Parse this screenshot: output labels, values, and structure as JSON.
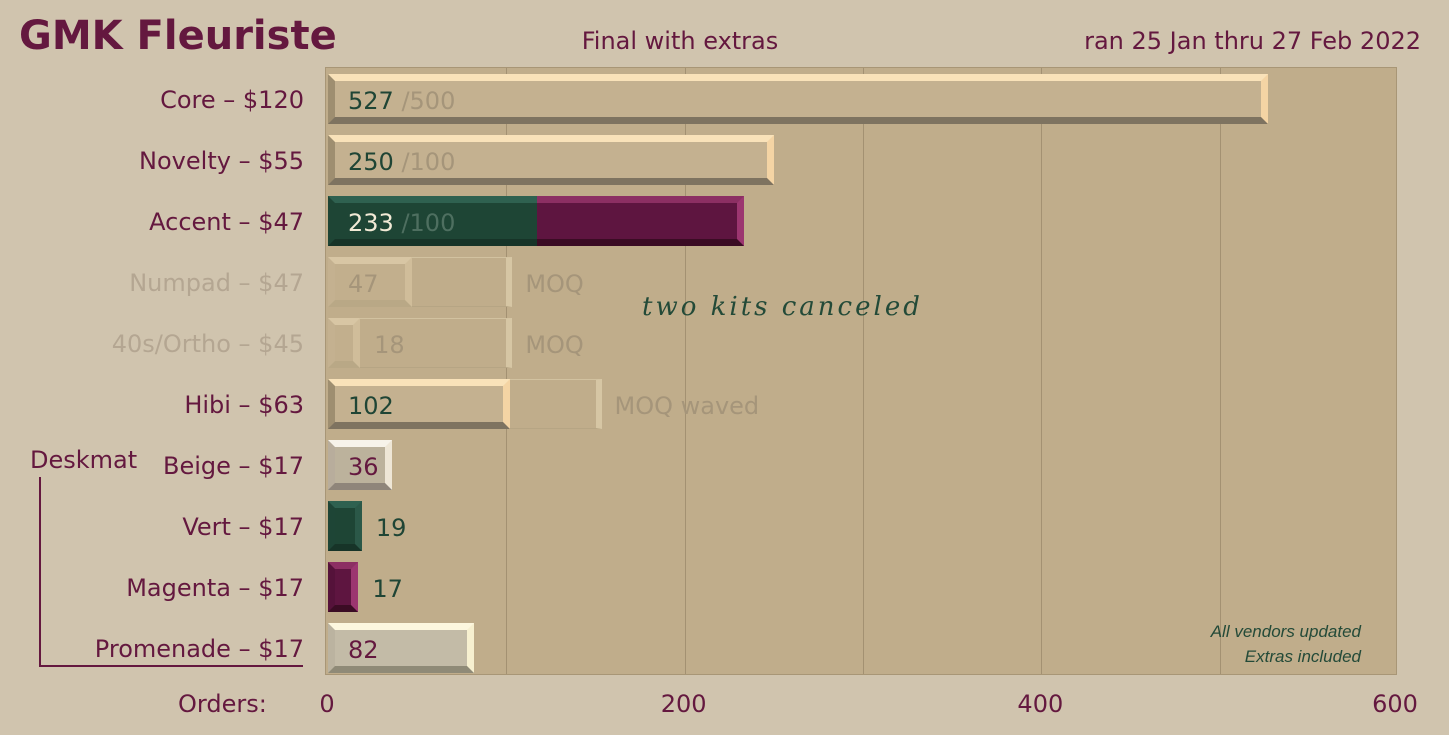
{
  "header": {
    "title": "GMK Fleuriste",
    "subtitle": "Final with extras",
    "date_range": "ran 25 Jan thru 27 Feb 2022"
  },
  "chart_data": {
    "type": "bar",
    "orientation": "horizontal",
    "xlabel": "Orders:",
    "xlim": [
      0,
      600
    ],
    "xticks": [
      "0",
      "200",
      "400",
      "600"
    ],
    "grid": "vertical",
    "categories": [
      "Core – $120",
      "Novelty – $55",
      "Accent – $47",
      "Numpad – $47",
      "40s/Ortho – $45",
      "Hibi – $63",
      "Beige – $17",
      "Vert – $17",
      "Magenta – $17",
      "Promenade – $17"
    ],
    "values": [
      527,
      250,
      233,
      47,
      18,
      102,
      36,
      19,
      17,
      82
    ],
    "value_labels": [
      "527",
      "250",
      "233",
      "47",
      "18",
      "102",
      "36",
      "19",
      "17",
      "82"
    ],
    "moq": [
      500,
      100,
      100,
      100,
      100,
      150,
      null,
      null,
      null,
      null
    ],
    "moq_labels": [
      "/500",
      "/100",
      "/100",
      "",
      "",
      "",
      "",
      "",
      "",
      ""
    ],
    "notes": [
      "",
      "",
      "",
      "MOQ",
      "MOQ",
      "MOQ waved",
      "",
      "",
      "",
      ""
    ],
    "group_label": "Deskmat",
    "annotation": "two kits canceled",
    "footnotes": [
      "All vendors updated",
      "Extras included"
    ]
  },
  "colors": {
    "background": "#d0c4ae",
    "plot_background": "#c0ad8b",
    "accent_magenta": "#64183f",
    "accent_green": "#1e4535",
    "core_highlight": "#f9e2b9"
  }
}
